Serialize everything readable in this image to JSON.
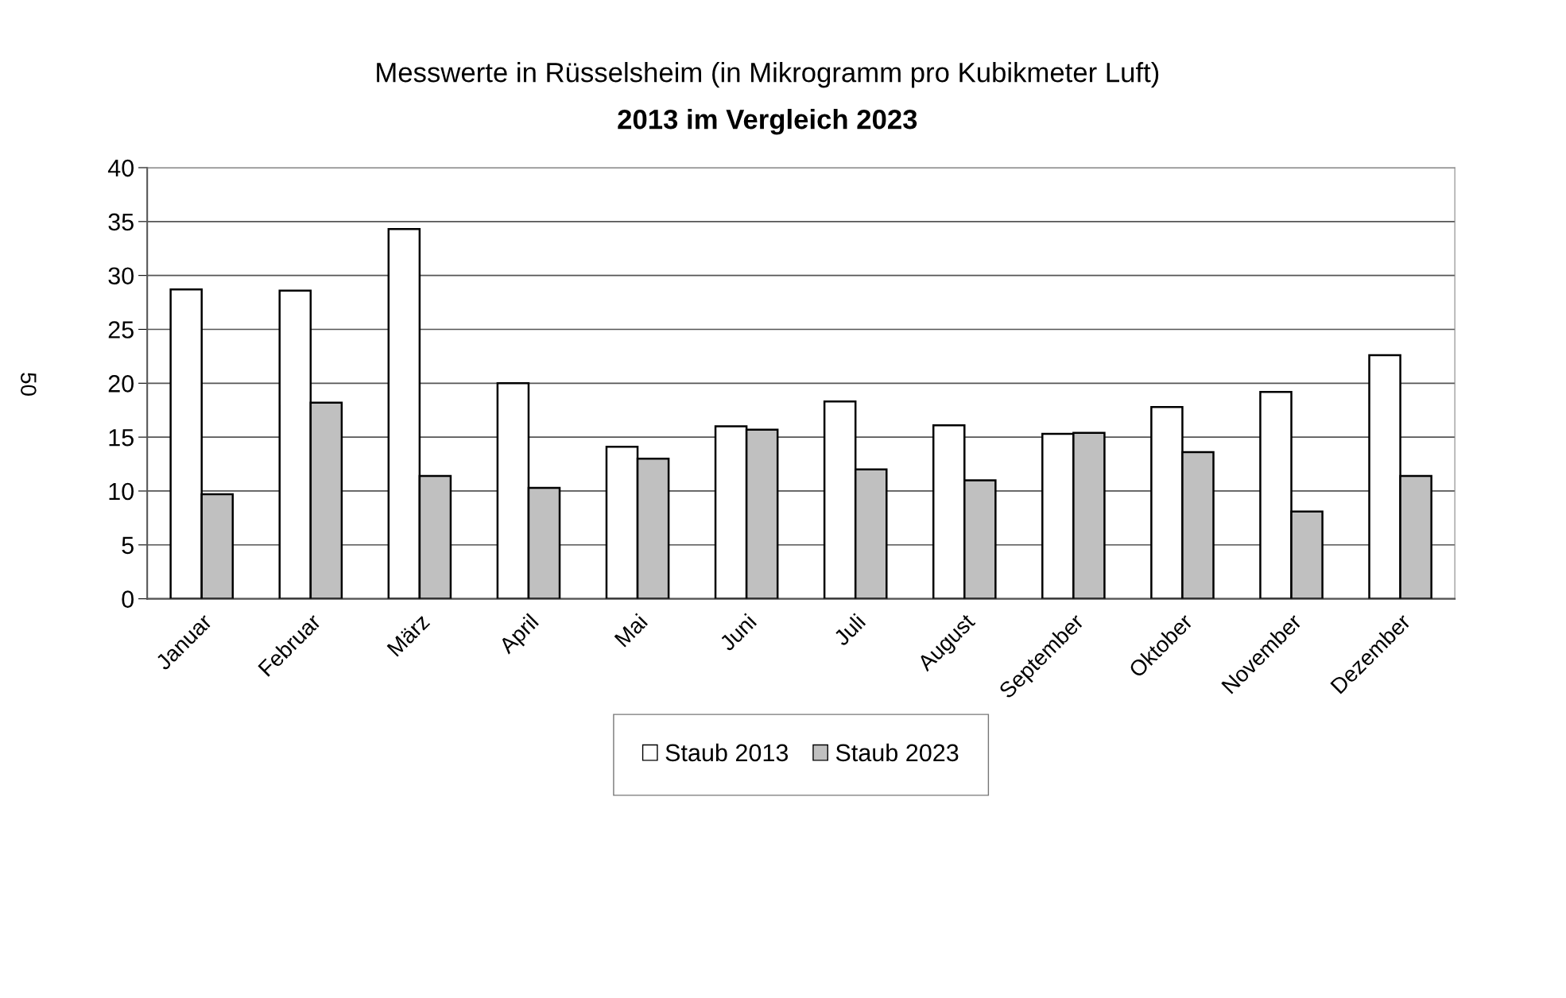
{
  "chart_data": {
    "type": "bar",
    "title": "Messwerte in Rüsselsheim (in Mikrogramm pro Kubikmeter Luft)",
    "subtitle": "2013 im Vergleich 2023",
    "categories": [
      "Januar",
      "Februar",
      "März",
      "April",
      "Mai",
      "Juni",
      "Juli",
      "August",
      "September",
      "Oktober",
      "November",
      "Dezember"
    ],
    "series": [
      {
        "name": "Staub 2013",
        "color": "#ffffff",
        "values": [
          28.7,
          28.6,
          34.3,
          20.0,
          14.1,
          16.0,
          18.3,
          16.1,
          15.3,
          17.8,
          19.2,
          22.6
        ]
      },
      {
        "name": "Staub 2023",
        "color": "#c0c0c0",
        "values": [
          9.7,
          18.2,
          11.4,
          10.3,
          13.0,
          15.7,
          12.0,
          11.0,
          15.4,
          13.6,
          8.1,
          11.4
        ]
      }
    ],
    "ylim": [
      0,
      40
    ],
    "yticks": [
      0,
      5,
      10,
      15,
      20,
      25,
      30,
      35,
      40
    ],
    "grid": "y",
    "legend": "bottom",
    "annotations": [
      "50"
    ]
  }
}
